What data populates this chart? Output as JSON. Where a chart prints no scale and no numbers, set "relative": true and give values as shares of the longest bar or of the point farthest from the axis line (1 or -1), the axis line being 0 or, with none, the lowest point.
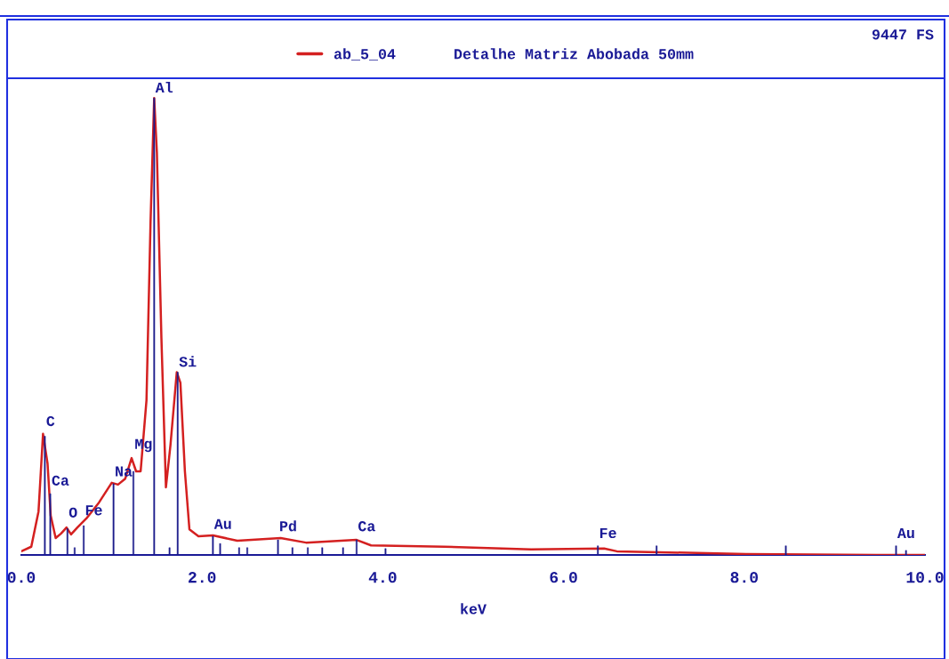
{
  "chart_data": {
    "type": "line",
    "title": "Detalhe Matriz Abobada 50mm",
    "xlabel": "keV",
    "relative": true,
    "legend": "top",
    "xlim": [
      0,
      10
    ],
    "xticks": [
      {
        "value": 0,
        "label": "0.0"
      },
      {
        "value": 2,
        "label": "2.0"
      },
      {
        "value": 4,
        "label": "4.0"
      },
      {
        "value": 6,
        "label": "6.0"
      },
      {
        "value": 8,
        "label": "8.0"
      },
      {
        "value": 10,
        "label": "10.0"
      }
    ],
    "grid": false,
    "series": [
      {
        "name": "ab_5_04",
        "color": "#d42020",
        "x": [
          0.0,
          0.11,
          0.19,
          0.24,
          0.29,
          0.325,
          0.38,
          0.44,
          0.5,
          0.55,
          0.62,
          0.72,
          0.86,
          1.0,
          1.07,
          1.15,
          1.22,
          1.27,
          1.32,
          1.385,
          1.43,
          1.47,
          1.5,
          1.55,
          1.6,
          1.65,
          1.72,
          1.76,
          1.81,
          1.86,
          1.96,
          2.12,
          2.39,
          2.87,
          3.15,
          3.71,
          3.87,
          4.68,
          5.64,
          6.45,
          6.59,
          8.02,
          9.46,
          10.0
        ],
        "values": [
          0.008,
          0.018,
          0.095,
          0.265,
          0.2,
          0.086,
          0.037,
          0.047,
          0.06,
          0.045,
          0.06,
          0.08,
          0.115,
          0.158,
          0.154,
          0.167,
          0.212,
          0.183,
          0.183,
          0.339,
          0.73,
          1.0,
          0.88,
          0.475,
          0.148,
          0.24,
          0.4,
          0.377,
          0.183,
          0.056,
          0.041,
          0.043,
          0.031,
          0.037,
          0.027,
          0.033,
          0.021,
          0.018,
          0.012,
          0.014,
          0.008,
          0.002,
          0.0,
          0.0
        ]
      },
      {
        "type": "bar",
        "color": "#1c1c8c",
        "x": [
          0.26,
          0.32,
          0.51,
          0.59,
          0.69,
          1.02,
          1.24,
          1.47,
          1.64,
          1.73,
          2.12,
          2.2,
          2.41,
          2.5,
          2.84,
          3.0,
          3.17,
          3.33,
          3.56,
          3.71,
          4.03,
          6.38,
          7.03,
          8.46,
          9.68,
          9.79
        ],
        "values": [
          0.26,
          0.134,
          0.058,
          0.016,
          0.064,
          0.156,
          0.183,
          1.0,
          0.016,
          0.4,
          0.041,
          0.025,
          0.016,
          0.016,
          0.033,
          0.016,
          0.016,
          0.016,
          0.016,
          0.033,
          0.014,
          0.02,
          0.02,
          0.02,
          0.02,
          0.01
        ]
      }
    ],
    "annotations": [
      "9447 FS",
      {
        "text": "C",
        "x": 0.26,
        "y": 0.27
      },
      {
        "text": "Ca",
        "x": 0.32,
        "y": 0.14
      },
      {
        "text": "O",
        "x": 0.51,
        "y": 0.07
      },
      {
        "text": "Fe",
        "x": 0.69,
        "y": 0.075
      },
      {
        "text": "Na",
        "x": 1.02,
        "y": 0.16
      },
      {
        "text": "Mg",
        "x": 1.24,
        "y": 0.22
      },
      {
        "text": "Al",
        "x": 1.47,
        "y": 1.0
      },
      {
        "text": "Si",
        "x": 1.73,
        "y": 0.4
      },
      {
        "text": "Au",
        "x": 2.12,
        "y": 0.045
      },
      {
        "text": "Pd",
        "x": 2.84,
        "y": 0.04
      },
      {
        "text": "Ca",
        "x": 3.71,
        "y": 0.04
      },
      {
        "text": "Fe",
        "x": 6.38,
        "y": 0.025
      },
      {
        "text": "Au",
        "x": 9.68,
        "y": 0.025
      }
    ]
  }
}
